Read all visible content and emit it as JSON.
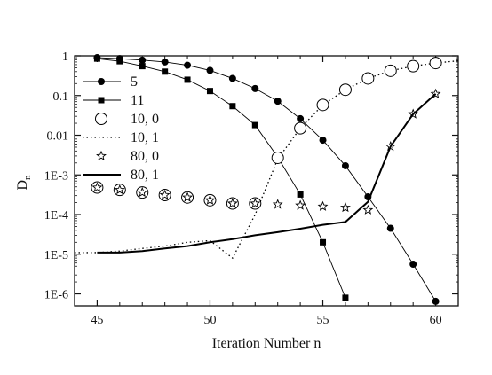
{
  "chart_data": {
    "type": "line",
    "xlabel": "Iteration Number n",
    "ylabel": "D",
    "ylabel_subscript": "n",
    "xlim": [
      44,
      61
    ],
    "ylim": [
      5e-07,
      1
    ],
    "y_scale": "log",
    "x_ticks": [
      45,
      50,
      55,
      60
    ],
    "x_tick_labels": [
      "45",
      "50",
      "55",
      "60"
    ],
    "y_ticks": [
      1,
      0.1,
      0.01,
      0.001,
      0.0001,
      1e-05,
      1e-06
    ],
    "y_tick_labels": [
      "1",
      "0.1",
      "0.01",
      "1E-3",
      "1E-4",
      "1E-5",
      "1E-6"
    ],
    "grid": false,
    "legend_position": "left",
    "series": [
      {
        "name": "5",
        "marker": "filled-circle",
        "line": "solid-thin",
        "x": [
          45,
          46,
          47,
          48,
          49,
          50,
          51,
          52,
          53,
          54,
          55,
          56,
          57,
          58,
          59,
          60
        ],
        "y": [
          0.9,
          0.85,
          0.78,
          0.7,
          0.58,
          0.43,
          0.27,
          0.15,
          0.072,
          0.026,
          0.0075,
          0.0017,
          0.00028,
          4.5e-05,
          5.6e-06,
          6.5e-07
        ]
      },
      {
        "name": "11",
        "marker": "filled-square",
        "line": "solid-thin",
        "x": [
          45,
          46,
          47,
          48,
          49,
          50,
          51,
          52,
          53,
          54,
          55,
          56
        ],
        "y": [
          0.85,
          0.73,
          0.55,
          0.4,
          0.25,
          0.13,
          0.054,
          0.018,
          0.0028,
          0.00032,
          2e-05,
          8e-07
        ]
      },
      {
        "name": "10, 0",
        "marker": "open-circle",
        "line": "none",
        "x": [
          45,
          46,
          47,
          48,
          49,
          50,
          51,
          52,
          53,
          54,
          55,
          56,
          57,
          58,
          59,
          60
        ],
        "y": [
          0.00048,
          0.00042,
          0.00036,
          0.00031,
          0.00027,
          0.00023,
          0.00019,
          0.00019,
          0.0027,
          0.015,
          0.058,
          0.14,
          0.27,
          0.42,
          0.55,
          0.66
        ]
      },
      {
        "name": "10, 1",
        "marker": "none",
        "line": "dotted",
        "x": [
          44,
          45,
          46,
          47,
          48,
          49,
          50,
          51,
          52,
          53,
          54,
          55,
          56,
          57,
          58,
          59,
          60,
          61
        ],
        "y": [
          1.1e-05,
          1.1e-05,
          1.2e-05,
          1.4e-05,
          1.6e-05,
          2e-05,
          2.2e-05,
          8e-06,
          0.0001,
          0.0025,
          0.015,
          0.058,
          0.14,
          0.27,
          0.42,
          0.55,
          0.66,
          0.75
        ]
      },
      {
        "name": "80, 0",
        "marker": "open-star",
        "line": "none",
        "x": [
          45,
          46,
          47,
          48,
          49,
          50,
          51,
          52,
          53,
          54,
          55,
          56,
          57,
          58,
          59,
          60
        ],
        "y": [
          0.00048,
          0.00042,
          0.00036,
          0.00031,
          0.00027,
          0.00023,
          0.00019,
          0.00019,
          0.00018,
          0.00017,
          0.00016,
          0.00015,
          0.00013,
          0.0052,
          0.034,
          0.11
        ]
      },
      {
        "name": "80, 1",
        "marker": "none",
        "line": "solid-thick",
        "x": [
          45,
          46,
          47,
          48,
          49,
          50,
          51,
          52,
          53,
          54,
          55,
          56,
          57,
          58,
          59,
          60
        ],
        "y": [
          1.1e-05,
          1.1e-05,
          1.2e-05,
          1.4e-05,
          1.6e-05,
          2e-05,
          2.4e-05,
          3e-05,
          3.6e-05,
          4.4e-05,
          5.5e-05,
          6.5e-05,
          0.00021,
          0.0052,
          0.034,
          0.11
        ]
      }
    ]
  }
}
